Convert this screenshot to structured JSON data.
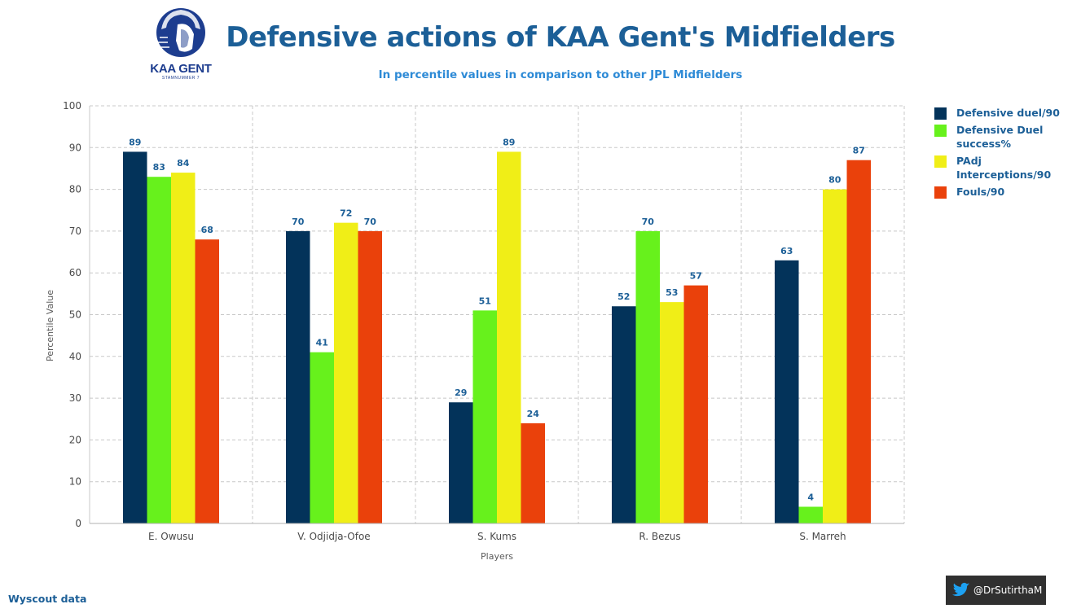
{
  "logo": {
    "text": "KAA GENT",
    "sub": "STAMNUMMER 7"
  },
  "header": {
    "title": "Defensive actions of KAA Gent's Midfielders",
    "subtitle": "In percentile values in comparison to other JPL Midfielders"
  },
  "chart_data": {
    "type": "bar",
    "title": "Defensive actions of KAA Gent's Midfielders",
    "xlabel": "Players",
    "ylabel": "Percentile Value",
    "ylim": [
      0,
      100
    ],
    "yticks": [
      0,
      10,
      20,
      30,
      40,
      50,
      60,
      70,
      80,
      90,
      100
    ],
    "grid": true,
    "legend_position": "top-right",
    "categories": [
      "E. Owusu",
      "V. Odjidja-Ofoe",
      "S. Kums",
      "R. Bezus",
      "S. Marreh"
    ],
    "series": [
      {
        "name": "Defensive duel/90",
        "color": "#03335a",
        "values": [
          89,
          70,
          29,
          52,
          63
        ]
      },
      {
        "name": "Defensive Duel success%",
        "color": "#67f11c",
        "values": [
          83,
          41,
          51,
          70,
          4
        ]
      },
      {
        "name": "PAdj Interceptions/90",
        "color": "#f0ee17",
        "values": [
          84,
          72,
          89,
          53,
          80
        ]
      },
      {
        "name": "Fouls/90",
        "color": "#ea410b",
        "values": [
          68,
          70,
          24,
          57,
          87
        ]
      }
    ]
  },
  "legend": [
    {
      "label": "Defensive duel/90",
      "color": "#03335a"
    },
    {
      "label": "Defensive Duel success%",
      "color": "#67f11c"
    },
    {
      "label": "PAdj Interceptions/90",
      "color": "#f0ee17"
    },
    {
      "label": "Fouls/90",
      "color": "#ea410b"
    }
  ],
  "footer": {
    "source": "Wyscout data",
    "handle": "@DrSutirthaM",
    "icon": "twitter-bird-icon"
  }
}
